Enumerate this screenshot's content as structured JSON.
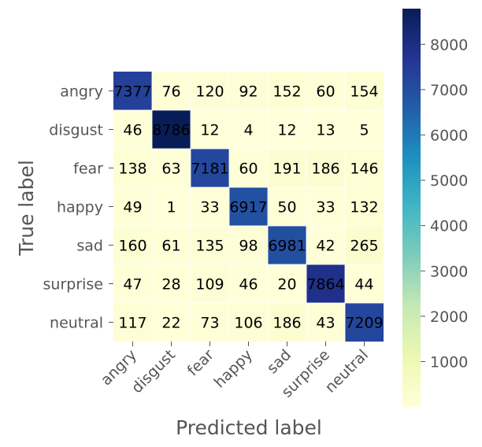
{
  "chart_data": {
    "type": "heatmap",
    "title": "",
    "xlabel": "Predicted label",
    "ylabel": "True label",
    "x_categories": [
      "angry",
      "disgust",
      "fear",
      "happy",
      "sad",
      "surprise",
      "neutral"
    ],
    "y_categories": [
      "angry",
      "disgust",
      "fear",
      "happy",
      "sad",
      "surprise",
      "neutral"
    ],
    "values": [
      [
        7377,
        76,
        120,
        92,
        152,
        60,
        154
      ],
      [
        46,
        8786,
        12,
        4,
        12,
        13,
        5
      ],
      [
        138,
        63,
        7181,
        60,
        191,
        186,
        146
      ],
      [
        49,
        1,
        33,
        6917,
        50,
        33,
        132
      ],
      [
        160,
        61,
        135,
        98,
        6981,
        42,
        265
      ],
      [
        47,
        28,
        109,
        46,
        20,
        7864,
        44
      ],
      [
        117,
        22,
        73,
        106,
        186,
        43,
        7209
      ]
    ],
    "colormap": "YlGnBu",
    "colorbar": {
      "range": [
        1,
        8786
      ],
      "ticks": [
        1000,
        2000,
        3000,
        4000,
        5000,
        6000,
        7000,
        8000
      ],
      "stops": [
        "#ffffd9",
        "#edf8b1",
        "#c7e9b4",
        "#7fcdbb",
        "#41b6c4",
        "#1d91c0",
        "#225ea8",
        "#253494",
        "#081d58"
      ]
    },
    "grid": true
  }
}
